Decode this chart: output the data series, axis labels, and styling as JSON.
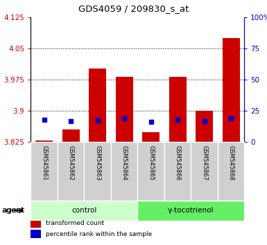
{
  "title": "GDS4059 / 209830_s_at",
  "samples": [
    "GSM545861",
    "GSM545862",
    "GSM545863",
    "GSM545864",
    "GSM545865",
    "GSM545866",
    "GSM545867",
    "GSM545868"
  ],
  "red_values": [
    3.829,
    3.856,
    4.002,
    3.981,
    3.848,
    3.981,
    3.9,
    4.075
  ],
  "blue_values": [
    3.878,
    3.876,
    3.877,
    3.882,
    3.873,
    3.879,
    3.876,
    3.882
  ],
  "baseline": 3.825,
  "ylim_left": [
    3.825,
    4.125
  ],
  "yticks_left": [
    3.825,
    3.9,
    3.975,
    4.05,
    4.125
  ],
  "yticks_right": [
    0,
    25,
    50,
    75,
    100
  ],
  "grid_yticks": [
    3.9,
    3.975,
    4.05
  ],
  "group_defs": [
    {
      "start": 0,
      "end": 3,
      "label": "control",
      "color": "#ccffcc"
    },
    {
      "start": 4,
      "end": 7,
      "label": "γ-tocotrienol",
      "color": "#66ee66"
    }
  ],
  "red_color": "#cc0000",
  "blue_color": "#0000cc",
  "bar_width": 0.65,
  "left_tick_color": "#cc0000",
  "right_tick_color": "#0000cc",
  "sample_box_color": "#d0d0d0",
  "legend": [
    {
      "color": "#cc0000",
      "label": "transformed count"
    },
    {
      "color": "#0000cc",
      "label": "percentile rank within the sample"
    }
  ]
}
